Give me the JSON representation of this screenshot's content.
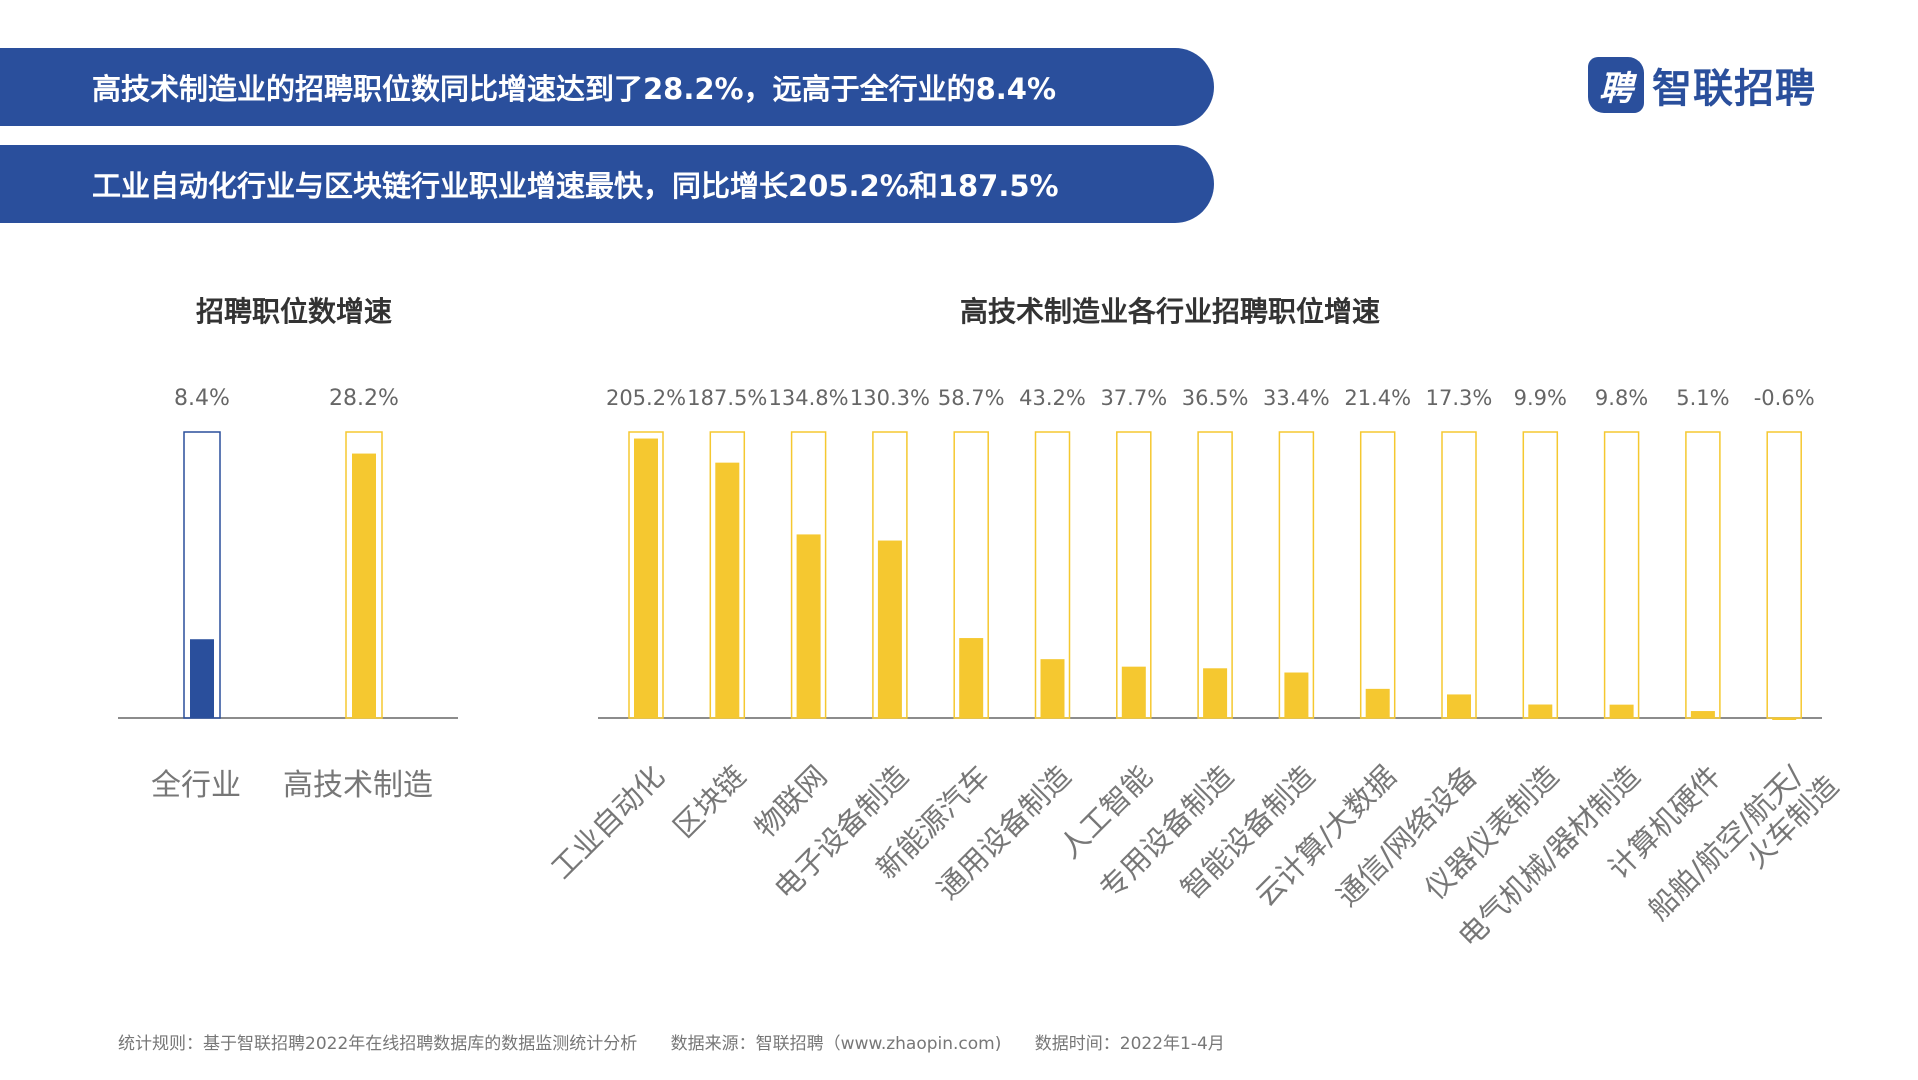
{
  "banners": [
    "高技术制造业的招聘职位数同比增速达到了28.2%，远高于全行业的8.4%",
    "工业自动化行业与区块链行业职业增速最快，同比增长205.2%和187.5%"
  ],
  "logo": {
    "mark": "聘",
    "text": "智联招聘"
  },
  "colors": {
    "blue": "#2a4f9c",
    "yellow": "#f5c830",
    "axis": "#666666"
  },
  "footer": {
    "rule": "统计规则：基于智联招聘2022年在线招聘数据库的数据监测统计分析",
    "source": "数据来源：智联招聘（www.zhaopin.com)",
    "time": "数据时间：2022年1-4月"
  },
  "chart_data": [
    {
      "type": "bar",
      "title": "招聘职位数增速",
      "categories": [
        "全行业",
        "高技术制造"
      ],
      "values": [
        8.4,
        28.2
      ],
      "labels": [
        "8.4%",
        "28.2%"
      ],
      "ylim": [
        0,
        30.5
      ],
      "colors": [
        "#2a4f9c",
        "#f5c830"
      ]
    },
    {
      "type": "bar",
      "title": "高技术制造业各行业招聘职位增速",
      "categories": [
        "工业自动化",
        "区块链",
        "物联网",
        "电子设备制造",
        "新能源汽车",
        "通用设备制造",
        "人工智能",
        "专用设备制造",
        "智能设备制造",
        "云计算/大数据",
        "通信/网络设备",
        "仪器仪表制造",
        "电气机械/器材制造",
        "计算机硬件",
        "船舶/航空/航天/\n火车制造"
      ],
      "values": [
        205.2,
        187.5,
        134.8,
        130.3,
        58.7,
        43.2,
        37.7,
        36.5,
        33.4,
        21.4,
        17.3,
        9.9,
        9.8,
        5.1,
        -0.6
      ],
      "labels": [
        "205.2%",
        "187.5%",
        "134.8%",
        "130.3%",
        "58.7%",
        "43.2%",
        "37.7%",
        "36.5%",
        "33.4%",
        "21.4%",
        "17.3%",
        "9.9%",
        "9.8%",
        "5.1%",
        "-0.6%"
      ],
      "ylim": [
        0,
        210
      ],
      "color": "#f5c830"
    }
  ]
}
